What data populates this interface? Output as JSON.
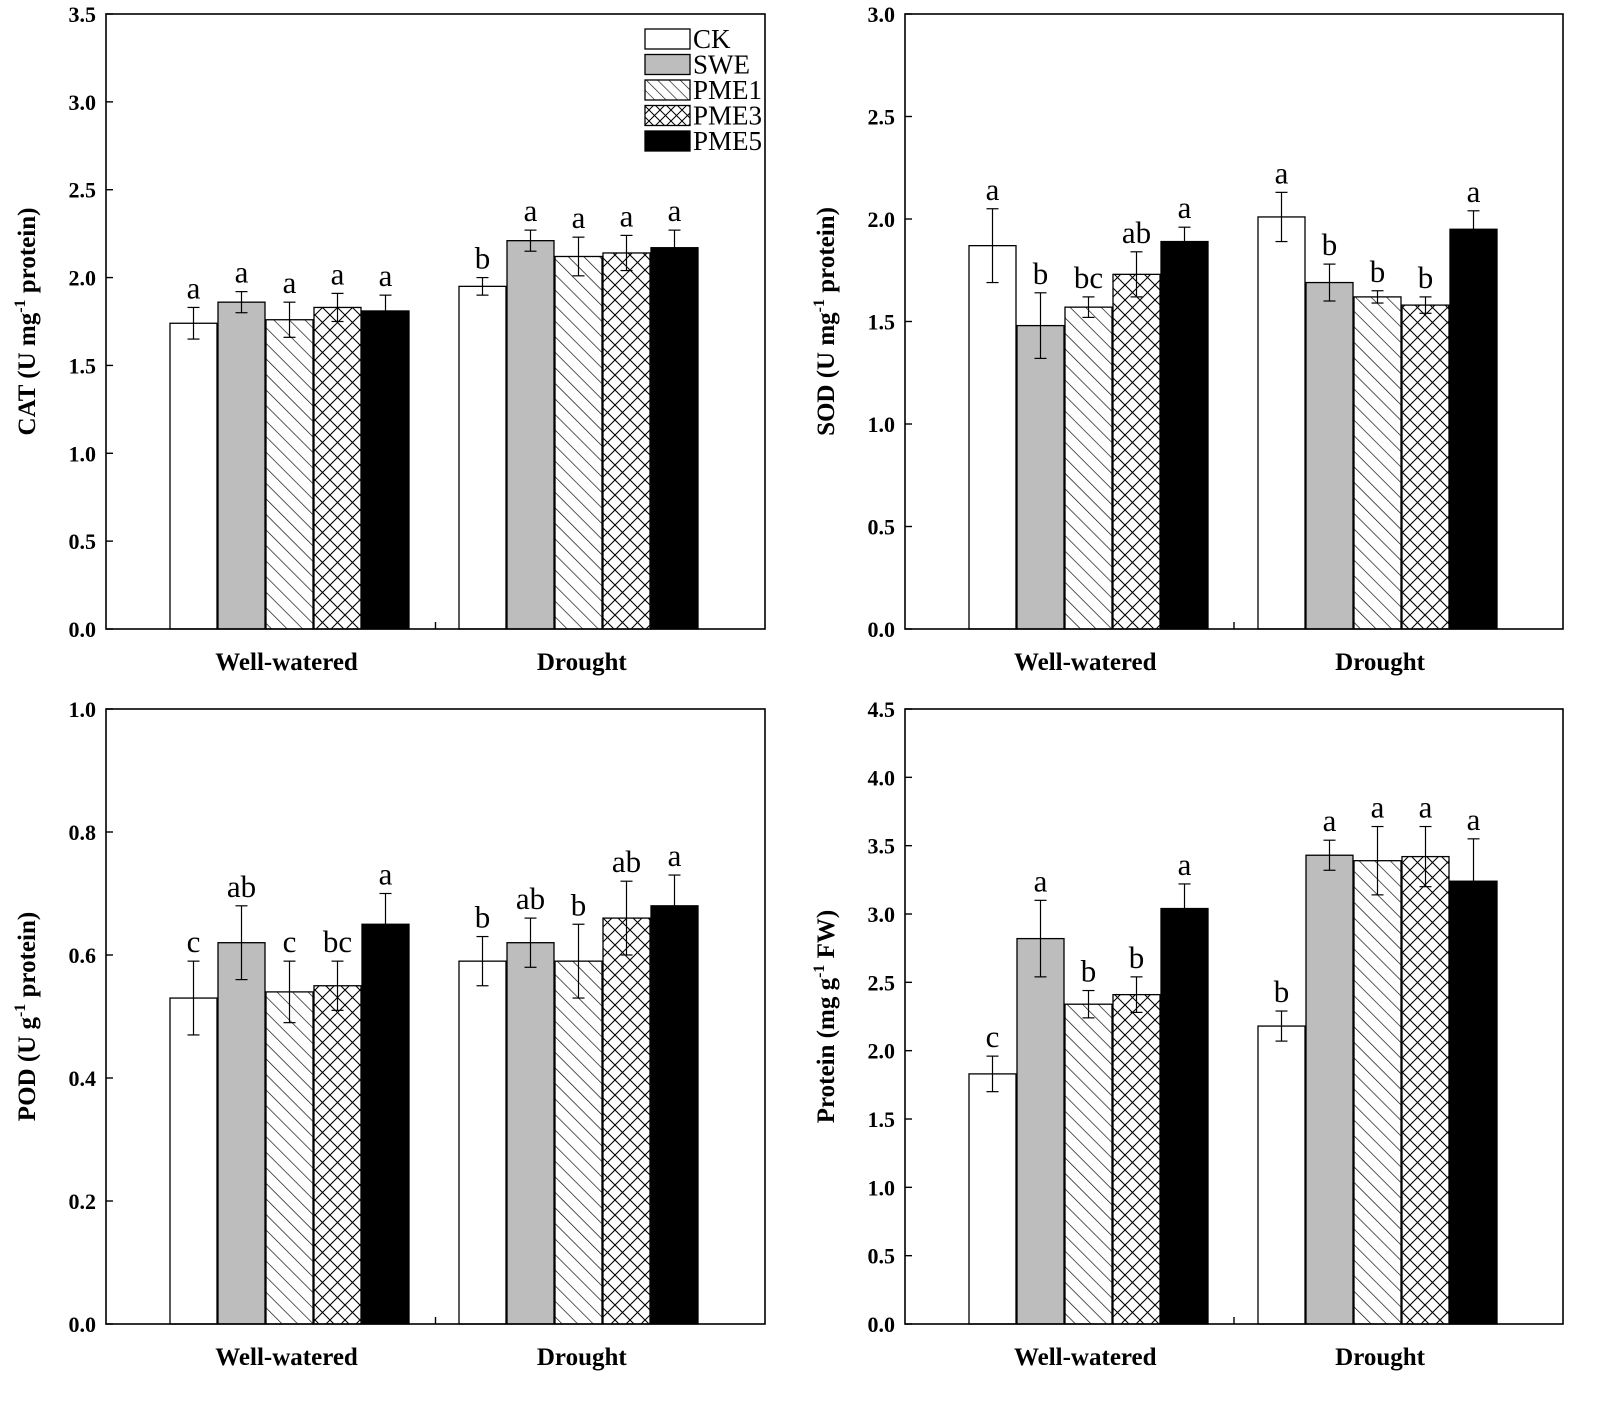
{
  "legend": [
    {
      "name": "CK",
      "fill": "white"
    },
    {
      "name": "SWE",
      "fill": "gray"
    },
    {
      "name": "PME1",
      "fill": "hatch"
    },
    {
      "name": "PME3",
      "fill": "cross"
    },
    {
      "name": "PME5",
      "fill": "black"
    }
  ],
  "colors": {
    "gray": "#bdbdbd",
    "black": "#000000",
    "white": "#ffffff",
    "axis": "#000000"
  },
  "chart_data": [
    {
      "id": "cat",
      "type": "bar",
      "ylabel": "CAT (U mg-1 protein)",
      "ylabel_parts": {
        "pre": "CAT (U mg",
        "sup": "-1",
        "post": " protein)"
      },
      "categories": [
        "Well-watered",
        "Drought"
      ],
      "ylim": [
        0,
        3.5
      ],
      "ticks": [
        "0.0",
        "0.5",
        "1.0",
        "1.5",
        "2.0",
        "2.5",
        "3.0",
        "3.5"
      ],
      "series": [
        {
          "name": "CK",
          "values": [
            1.74,
            1.95
          ],
          "errors": [
            0.09,
            0.05
          ],
          "labels": [
            "a",
            "b"
          ]
        },
        {
          "name": "SWE",
          "values": [
            1.86,
            2.21
          ],
          "errors": [
            0.06,
            0.06
          ],
          "labels": [
            "a",
            "a"
          ]
        },
        {
          "name": "PME1",
          "values": [
            1.76,
            2.12
          ],
          "errors": [
            0.1,
            0.11
          ],
          "labels": [
            "a",
            "a"
          ]
        },
        {
          "name": "PME3",
          "values": [
            1.83,
            2.14
          ],
          "errors": [
            0.08,
            0.1
          ],
          "labels": [
            "a",
            "a"
          ]
        },
        {
          "name": "PME5",
          "values": [
            1.81,
            2.17
          ],
          "errors": [
            0.09,
            0.1
          ],
          "labels": [
            "a",
            "a"
          ]
        }
      ],
      "legend_position": "top-right"
    },
    {
      "id": "sod",
      "type": "bar",
      "ylabel": "SOD (U mg-1 protein)",
      "ylabel_parts": {
        "pre": "SOD (U mg",
        "sup": "-1",
        "post": " protein)"
      },
      "categories": [
        "Well-watered",
        "Drought"
      ],
      "ylim": [
        0,
        3.0
      ],
      "ticks": [
        "0.0",
        "0.5",
        "1.0",
        "1.5",
        "2.0",
        "2.5",
        "3.0"
      ],
      "series": [
        {
          "name": "CK",
          "values": [
            1.87,
            2.01
          ],
          "errors": [
            0.18,
            0.12
          ],
          "labels": [
            "a",
            "a"
          ]
        },
        {
          "name": "SWE",
          "values": [
            1.48,
            1.69
          ],
          "errors": [
            0.16,
            0.09
          ],
          "labels": [
            "b",
            "b"
          ]
        },
        {
          "name": "PME1",
          "values": [
            1.57,
            1.62
          ],
          "errors": [
            0.05,
            0.03
          ],
          "labels": [
            "bc",
            "b"
          ]
        },
        {
          "name": "PME3",
          "values": [
            1.73,
            1.58
          ],
          "errors": [
            0.11,
            0.04
          ],
          "labels": [
            "ab",
            "b"
          ]
        },
        {
          "name": "PME5",
          "values": [
            1.89,
            1.95
          ],
          "errors": [
            0.07,
            0.09
          ],
          "labels": [
            "a",
            "a"
          ]
        }
      ]
    },
    {
      "id": "pod",
      "type": "bar",
      "ylabel": "POD (U g-1 protein)",
      "ylabel_parts": {
        "pre": "POD (U g",
        "sup": "-1",
        "post": " protein)"
      },
      "categories": [
        "Well-watered",
        "Drought"
      ],
      "ylim": [
        0,
        1.0
      ],
      "ticks": [
        "0.0",
        "0.2",
        "0.4",
        "0.6",
        "0.8",
        "1.0"
      ],
      "series": [
        {
          "name": "CK",
          "values": [
            0.53,
            0.59
          ],
          "errors": [
            0.06,
            0.04
          ],
          "labels": [
            "c",
            "b"
          ]
        },
        {
          "name": "SWE",
          "values": [
            0.62,
            0.62
          ],
          "errors": [
            0.06,
            0.04
          ],
          "labels": [
            "ab",
            "ab"
          ]
        },
        {
          "name": "PME1",
          "values": [
            0.54,
            0.59
          ],
          "errors": [
            0.05,
            0.06
          ],
          "labels": [
            "c",
            "b"
          ]
        },
        {
          "name": "PME3",
          "values": [
            0.55,
            0.66
          ],
          "errors": [
            0.04,
            0.06
          ],
          "labels": [
            "bc",
            "ab"
          ]
        },
        {
          "name": "PME5",
          "values": [
            0.65,
            0.68
          ],
          "errors": [
            0.05,
            0.05
          ],
          "labels": [
            "a",
            "a"
          ]
        }
      ]
    },
    {
      "id": "protein",
      "type": "bar",
      "ylabel": "Protein (mg g-1 FW)",
      "ylabel_parts": {
        "pre": "Protein (mg g",
        "sup": "-1",
        "post": " FW)"
      },
      "categories": [
        "Well-watered",
        "Drought"
      ],
      "ylim": [
        0,
        4.5
      ],
      "ticks": [
        "0.0",
        "0.5",
        "1.0",
        "1.5",
        "2.0",
        "2.5",
        "3.0",
        "3.5",
        "4.0",
        "4.5"
      ],
      "series": [
        {
          "name": "CK",
          "values": [
            1.83,
            2.18
          ],
          "errors": [
            0.13,
            0.11
          ],
          "labels": [
            "c",
            "b"
          ]
        },
        {
          "name": "SWE",
          "values": [
            2.82,
            3.43
          ],
          "errors": [
            0.28,
            0.11
          ],
          "labels": [
            "a",
            "a"
          ]
        },
        {
          "name": "PME1",
          "values": [
            2.34,
            3.39
          ],
          "errors": [
            0.1,
            0.25
          ],
          "labels": [
            "b",
            "a"
          ]
        },
        {
          "name": "PME3",
          "values": [
            2.41,
            3.42
          ],
          "errors": [
            0.13,
            0.22
          ],
          "labels": [
            "b",
            "a"
          ]
        },
        {
          "name": "PME5",
          "values": [
            3.04,
            3.24
          ],
          "errors": [
            0.18,
            0.31
          ],
          "labels": [
            "a",
            "a"
          ]
        }
      ]
    }
  ]
}
